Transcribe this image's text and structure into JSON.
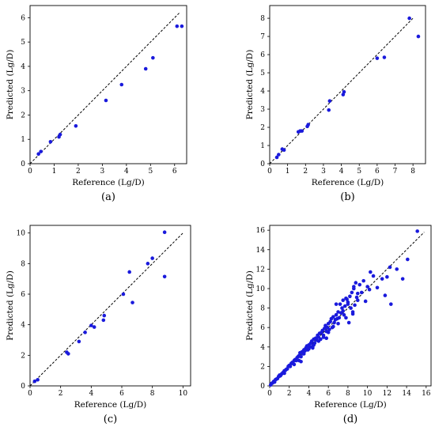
{
  "chart_data": [
    {
      "type": "scatter",
      "panel_label": "(a)",
      "xlabel": "Reference (Lg/D)",
      "ylabel": "Predicted (Lg/D)",
      "xlim": [
        0,
        6.5
      ],
      "ylim": [
        0,
        6.5
      ],
      "xticks": [
        0,
        1,
        2,
        3,
        4,
        5,
        6
      ],
      "yticks": [
        0,
        1,
        2,
        3,
        4,
        5,
        6
      ],
      "x": [
        0.35,
        0.45,
        0.85,
        1.2,
        1.25,
        1.9,
        3.15,
        3.8,
        4.8,
        5.1,
        6.1,
        6.3
      ],
      "y": [
        0.4,
        0.5,
        0.9,
        1.1,
        1.2,
        1.55,
        2.6,
        3.25,
        3.9,
        4.35,
        5.65,
        5.65
      ],
      "identity_line": [
        0,
        6.2
      ]
    },
    {
      "type": "scatter",
      "panel_label": "(b)",
      "xlabel": "Reference (Lg/D)",
      "ylabel": "Predicted (Lg/D)",
      "xlim": [
        0,
        8.7
      ],
      "ylim": [
        0,
        8.7
      ],
      "xticks": [
        0,
        1,
        2,
        3,
        4,
        5,
        6,
        7,
        8
      ],
      "yticks": [
        0,
        1,
        2,
        3,
        4,
        5,
        6,
        7,
        8
      ],
      "x": [
        0.4,
        0.5,
        0.7,
        0.8,
        1.6,
        1.7,
        1.8,
        2.1,
        2.15,
        3.3,
        3.35,
        4.1,
        4.15,
        6.0,
        6.4,
        7.8,
        8.3
      ],
      "y": [
        0.35,
        0.5,
        0.8,
        0.75,
        1.75,
        1.8,
        1.8,
        2.05,
        2.15,
        2.95,
        3.45,
        3.8,
        3.95,
        5.8,
        5.85,
        8.0,
        7.0
      ],
      "identity_line": [
        0,
        8.0
      ]
    },
    {
      "type": "scatter",
      "panel_label": "(c)",
      "xlabel": "Reference (Lg/D)",
      "ylabel": "Predicted (Lg/D)",
      "xlim": [
        0,
        10.5
      ],
      "ylim": [
        0,
        10.5
      ],
      "xticks": [
        0,
        2,
        4,
        6,
        8,
        10
      ],
      "yticks": [
        0,
        2,
        4,
        6,
        8,
        10
      ],
      "x": [
        0.3,
        0.5,
        2.4,
        2.5,
        3.2,
        3.6,
        4.0,
        4.2,
        4.8,
        4.85,
        6.1,
        6.5,
        6.7,
        7.7,
        8.0,
        8.8,
        8.8
      ],
      "y": [
        0.3,
        0.4,
        2.2,
        2.1,
        2.9,
        3.5,
        3.95,
        3.85,
        4.3,
        4.6,
        6.0,
        7.45,
        5.45,
        8.0,
        8.35,
        7.15,
        10.05
      ],
      "identity_line": [
        0,
        10.0
      ]
    },
    {
      "type": "scatter",
      "panel_label": "(d)",
      "xlabel": "Reference (Lg/D)",
      "ylabel": "Predicted (Lg/D)",
      "xlim": [
        0,
        16.5
      ],
      "ylim": [
        0,
        16.5
      ],
      "xticks": [
        0,
        2,
        4,
        6,
        8,
        10,
        12,
        14,
        16
      ],
      "yticks": [
        0,
        2,
        4,
        6,
        8,
        10,
        12,
        14,
        16
      ],
      "x": [
        0.1,
        0.2,
        0.3,
        0.4,
        0.5,
        0.6,
        0.7,
        0.8,
        0.9,
        1.0,
        1.1,
        1.2,
        1.3,
        1.4,
        1.5,
        1.6,
        1.7,
        1.8,
        1.9,
        2.0,
        2.1,
        2.2,
        2.3,
        2.4,
        2.5,
        2.6,
        2.7,
        2.8,
        2.9,
        3.0,
        3.1,
        3.2,
        3.3,
        3.4,
        3.5,
        3.6,
        3.7,
        3.8,
        3.9,
        4.0,
        4.1,
        4.2,
        4.3,
        4.4,
        4.5,
        4.6,
        4.7,
        4.8,
        4.9,
        5.0,
        5.1,
        5.2,
        5.3,
        5.4,
        5.5,
        5.6,
        5.7,
        5.8,
        5.9,
        6.0,
        6.1,
        6.2,
        6.3,
        6.4,
        6.5,
        6.6,
        6.7,
        6.8,
        6.9,
        7.0,
        7.1,
        7.2,
        7.3,
        7.4,
        7.5,
        7.6,
        7.7,
        7.8,
        7.9,
        8.0,
        8.1,
        8.2,
        8.3,
        8.4,
        8.5,
        8.6,
        8.7,
        8.8,
        8.9,
        9.0,
        9.2,
        9.4,
        9.6,
        9.8,
        10.0,
        10.3,
        10.6,
        11.0,
        11.5,
        12.0,
        12.4,
        13.0,
        13.6,
        14.1,
        15.1,
        0.5,
        1.0,
        1.5,
        2.5,
        3.0,
        3.5,
        4.0,
        4.5,
        5.0,
        5.5,
        6.0,
        6.5,
        7.0,
        7.5,
        8.0,
        8.5,
        9.0,
        10.2,
        11.8,
        12.3,
        3.2,
        4.4,
        5.8,
        6.8,
        7.8,
        8.6
      ],
      "y": [
        0.1,
        0.25,
        0.3,
        0.45,
        0.5,
        0.65,
        0.7,
        0.75,
        0.95,
        1.0,
        1.05,
        1.2,
        1.3,
        1.4,
        1.55,
        1.6,
        1.7,
        1.75,
        2.0,
        2.1,
        2.0,
        2.3,
        2.4,
        2.3,
        2.6,
        2.7,
        2.6,
        2.9,
        3.0,
        3.1,
        3.4,
        3.0,
        3.5,
        3.3,
        3.7,
        3.6,
        3.9,
        4.1,
        3.7,
        4.2,
        4.0,
        4.4,
        4.6,
        4.1,
        4.8,
        4.4,
        4.9,
        4.7,
        5.2,
        5.0,
        5.4,
        4.8,
        5.5,
        5.7,
        5.2,
        5.9,
        6.2,
        5.6,
        6.0,
        6.4,
        5.8,
        6.6,
        6.9,
        6.0,
        7.1,
        6.5,
        6.8,
        7.3,
        6.9,
        7.6,
        7.0,
        8.4,
        7.5,
        8.0,
        8.8,
        7.3,
        8.2,
        7.0,
        8.9,
        8.4,
        6.5,
        9.2,
        8.0,
        9.6,
        7.6,
        10.0,
        8.3,
        10.6,
        9.1,
        8.8,
        10.4,
        9.6,
        10.8,
        8.7,
        10.2,
        11.7,
        11.3,
        10.1,
        11.0,
        11.2,
        8.4,
        12.0,
        11.0,
        13.0,
        15.9,
        0.4,
        1.1,
        1.3,
        2.2,
        2.6,
        3.3,
        3.8,
        4.2,
        4.6,
        5.0,
        5.5,
        6.1,
        6.4,
        7.7,
        8.6,
        7.4,
        9.5,
        9.9,
        9.3,
        12.2,
        2.5,
        3.9,
        4.9,
        8.4,
        9.0,
        10.2
      ],
      "identity_line": [
        0,
        15.8
      ]
    }
  ]
}
